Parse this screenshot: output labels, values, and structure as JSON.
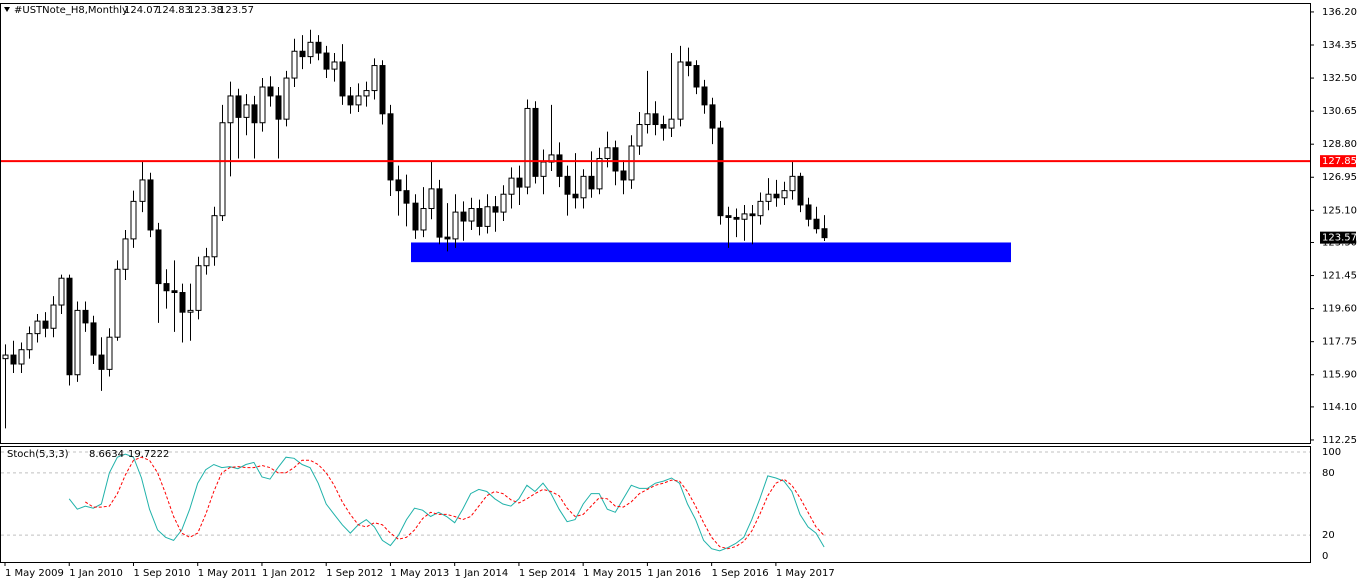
{
  "chart_data": {
    "type": "candlestick",
    "title": "#USTNote_H8,Monthly",
    "categories": [
      "1 May 2009",
      null,
      null,
      null,
      null,
      null,
      null,
      null,
      "1 Jan 2010",
      null,
      null,
      null,
      null,
      null,
      null,
      null,
      "1 Sep 2010",
      null,
      null,
      null,
      null,
      null,
      null,
      null,
      "1 May 2011",
      null,
      null,
      null,
      null,
      null,
      null,
      null,
      "1 Jan 2012",
      null,
      null,
      null,
      null,
      null,
      null,
      null,
      "1 Sep 2012",
      null,
      null,
      null,
      null,
      null,
      null,
      null,
      "1 May 2013",
      null,
      null,
      null,
      null,
      null,
      null,
      null,
      "1 Jan 2014",
      null,
      null,
      null,
      null,
      null,
      null,
      null,
      "1 Sep 2014",
      null,
      null,
      null,
      null,
      null,
      null,
      null,
      "1 May 2015",
      null,
      null,
      null,
      null,
      null,
      null,
      null,
      "1 Jan 2016",
      null,
      null,
      null,
      null,
      null,
      null,
      null,
      "1 Sep 2016",
      null,
      null,
      null,
      null,
      null,
      null,
      null,
      "1 May 2017",
      null,
      null,
      null,
      null,
      null,
      null
    ],
    "candles": [
      [
        116.8,
        117.6,
        112.9,
        117.0
      ],
      [
        117.0,
        117.8,
        116.0,
        116.5
      ],
      [
        116.5,
        117.7,
        116.0,
        117.3
      ],
      [
        117.3,
        118.6,
        116.8,
        118.2
      ],
      [
        118.2,
        119.3,
        117.7,
        118.9
      ],
      [
        118.9,
        119.4,
        118.0,
        118.5
      ],
      [
        118.5,
        120.3,
        118.0,
        119.8
      ],
      [
        119.8,
        121.5,
        119.3,
        121.3
      ],
      [
        121.3,
        121.5,
        115.3,
        115.9
      ],
      [
        115.9,
        120.0,
        115.5,
        119.5
      ],
      [
        119.5,
        120.0,
        118.3,
        118.8
      ],
      [
        118.8,
        119.2,
        116.5,
        117.0
      ],
      [
        117.0,
        118.0,
        115.0,
        116.2
      ],
      [
        116.2,
        118.5,
        115.8,
        118.0
      ],
      [
        118.0,
        122.3,
        117.8,
        121.8
      ],
      [
        121.8,
        124.0,
        121.2,
        123.5
      ],
      [
        123.5,
        126.2,
        123.0,
        125.6
      ],
      [
        125.6,
        127.8,
        125.0,
        126.8
      ],
      [
        126.8,
        127.2,
        123.6,
        124.0
      ],
      [
        124.0,
        124.4,
        118.8,
        121.0
      ],
      [
        121.0,
        121.8,
        119.6,
        120.6
      ],
      [
        120.6,
        122.3,
        118.3,
        120.5
      ],
      [
        120.5,
        121.0,
        117.7,
        119.4
      ],
      [
        119.4,
        121.0,
        117.8,
        119.5
      ],
      [
        119.5,
        122.5,
        119.0,
        122.0
      ],
      [
        122.0,
        123.0,
        121.5,
        122.5
      ],
      [
        122.5,
        125.3,
        122.0,
        124.8
      ],
      [
        124.8,
        131.0,
        124.5,
        130.0
      ],
      [
        130.0,
        132.3,
        127.0,
        131.5
      ],
      [
        131.5,
        131.9,
        128.0,
        130.3
      ],
      [
        130.3,
        131.6,
        129.3,
        131.0
      ],
      [
        131.0,
        131.5,
        128.0,
        130.0
      ],
      [
        130.0,
        132.5,
        129.5,
        132.0
      ],
      [
        132.0,
        132.6,
        130.9,
        131.5
      ],
      [
        131.5,
        132.0,
        128.0,
        130.2
      ],
      [
        130.2,
        132.9,
        129.8,
        132.5
      ],
      [
        132.5,
        134.7,
        132.0,
        134.0
      ],
      [
        134.0,
        134.9,
        133.0,
        133.7
      ],
      [
        133.7,
        135.2,
        133.3,
        134.5
      ],
      [
        134.5,
        134.9,
        133.5,
        133.9
      ],
      [
        133.9,
        134.3,
        132.5,
        133.0
      ],
      [
        133.0,
        133.9,
        132.3,
        133.4
      ],
      [
        133.4,
        134.4,
        131.0,
        131.5
      ],
      [
        131.5,
        132.0,
        130.5,
        131.0
      ],
      [
        131.0,
        132.2,
        130.6,
        131.5
      ],
      [
        131.5,
        132.3,
        130.9,
        131.8
      ],
      [
        131.8,
        133.6,
        131.3,
        133.2
      ],
      [
        133.2,
        133.5,
        129.9,
        130.5
      ],
      [
        130.5,
        131.0,
        125.9,
        126.8
      ],
      [
        126.8,
        127.6,
        124.8,
        126.2
      ],
      [
        126.2,
        127.1,
        124.2,
        125.5
      ],
      [
        125.5,
        126.0,
        123.5,
        124.0
      ],
      [
        124.0,
        126.4,
        123.6,
        125.2
      ],
      [
        125.2,
        127.8,
        124.6,
        126.3
      ],
      [
        126.3,
        126.8,
        123.2,
        123.6
      ],
      [
        123.6,
        125.5,
        122.8,
        123.5
      ],
      [
        123.5,
        126.0,
        123.0,
        125.0
      ],
      [
        125.0,
        125.6,
        123.4,
        124.5
      ],
      [
        124.5,
        125.8,
        124.0,
        125.2
      ],
      [
        125.2,
        125.7,
        123.7,
        124.2
      ],
      [
        124.2,
        126.0,
        123.8,
        125.3
      ],
      [
        125.3,
        125.9,
        123.9,
        125.0
      ],
      [
        125.0,
        126.5,
        124.5,
        126.0
      ],
      [
        126.0,
        127.5,
        125.2,
        126.9
      ],
      [
        126.9,
        127.6,
        125.4,
        126.4
      ],
      [
        126.4,
        131.3,
        126.0,
        130.8
      ],
      [
        130.8,
        131.2,
        126.6,
        127.0
      ],
      [
        127.0,
        128.5,
        126.0,
        127.8
      ],
      [
        127.8,
        131.0,
        127.3,
        128.2
      ],
      [
        128.2,
        128.9,
        126.4,
        127.0
      ],
      [
        127.0,
        127.6,
        124.8,
        126.0
      ],
      [
        126.0,
        128.3,
        125.2,
        125.8
      ],
      [
        125.8,
        127.4,
        125.2,
        127.0
      ],
      [
        127.0,
        128.4,
        125.8,
        126.3
      ],
      [
        126.3,
        128.6,
        126.0,
        128.0
      ],
      [
        128.0,
        129.5,
        127.5,
        128.6
      ],
      [
        128.6,
        129.0,
        126.5,
        127.3
      ],
      [
        127.3,
        127.9,
        126.0,
        126.8
      ],
      [
        126.8,
        129.3,
        126.3,
        128.7
      ],
      [
        128.7,
        130.6,
        128.2,
        129.9
      ],
      [
        129.9,
        132.9,
        129.4,
        130.5
      ],
      [
        130.5,
        131.2,
        129.3,
        129.9
      ],
      [
        129.9,
        130.4,
        129.0,
        129.7
      ],
      [
        129.7,
        133.9,
        129.2,
        130.2
      ],
      [
        130.2,
        134.3,
        129.8,
        133.4
      ],
      [
        133.4,
        134.2,
        132.6,
        133.2
      ],
      [
        133.2,
        133.5,
        131.6,
        132.0
      ],
      [
        132.0,
        132.4,
        130.5,
        131.0
      ],
      [
        131.0,
        131.4,
        128.8,
        129.7
      ],
      [
        129.7,
        130.1,
        124.3,
        124.8
      ],
      [
        124.8,
        125.3,
        123.0,
        124.7
      ],
      [
        124.7,
        125.2,
        123.6,
        124.6
      ],
      [
        124.6,
        125.4,
        123.4,
        124.9
      ],
      [
        124.9,
        125.4,
        123.2,
        124.8
      ],
      [
        124.8,
        126.1,
        124.3,
        125.6
      ],
      [
        125.6,
        126.9,
        125.1,
        126.0
      ],
      [
        126.0,
        126.8,
        125.3,
        125.8
      ],
      [
        125.8,
        126.7,
        125.4,
        126.2
      ],
      [
        126.2,
        127.8,
        125.7,
        127.0
      ],
      [
        127.0,
        127.2,
        125.0,
        125.4
      ],
      [
        125.4,
        125.8,
        124.2,
        124.6
      ],
      [
        124.6,
        125.3,
        123.8,
        124.07
      ],
      [
        124.07,
        124.83,
        123.38,
        123.57
      ]
    ],
    "ylim": [
      112.08,
      136.7
    ],
    "yticks": [
      {
        "value": 136.2,
        "label": "136.20"
      },
      {
        "value": 134.35,
        "label": "134.35"
      },
      {
        "value": 132.5,
        "label": "132.50"
      },
      {
        "value": 130.65,
        "label": "130.65"
      },
      {
        "value": 128.8,
        "label": "128.80"
      },
      {
        "value": 126.95,
        "label": "126.95"
      },
      {
        "value": 125.1,
        "label": "125.10"
      },
      {
        "value": 123.3,
        "label": "123.30"
      },
      {
        "value": 121.45,
        "label": "121.45"
      },
      {
        "value": 119.6,
        "label": "119.60"
      },
      {
        "value": 117.75,
        "label": "117.75"
      },
      {
        "value": 115.9,
        "label": "115.90"
      },
      {
        "value": 114.1,
        "label": "114.10"
      },
      {
        "value": 112.25,
        "label": "112.25"
      }
    ],
    "hline": {
      "value": 127.85,
      "color": "#ff0000"
    },
    "zone": {
      "ylim": [
        122.2,
        123.3
      ],
      "color": "#0000ff"
    },
    "indicator": {
      "type": "line",
      "title": "Stoch(5,3,3)",
      "ylim": [
        -5.8,
        105.8
      ],
      "yticks": [
        0,
        20,
        80,
        100
      ],
      "series": [
        {
          "color": "#20b2aa",
          "dash": false,
          "values": [
            null,
            null,
            null,
            null,
            null,
            null,
            null,
            null,
            55,
            45,
            48,
            46,
            50,
            80,
            95,
            98,
            95,
            75,
            45,
            25,
            18,
            15,
            25,
            45,
            70,
            83,
            88,
            85,
            86,
            84,
            88,
            90,
            76,
            74,
            85,
            95,
            94,
            88,
            85,
            70,
            50,
            40,
            30,
            22,
            30,
            35,
            28,
            15,
            10,
            20,
            35,
            46,
            44,
            38,
            42,
            38,
            32,
            45,
            60,
            64,
            62,
            55,
            50,
            48,
            55,
            68,
            62,
            70,
            60,
            45,
            33,
            35,
            50,
            60,
            60,
            45,
            42,
            55,
            68,
            65,
            65,
            70,
            72,
            75,
            70,
            50,
            35,
            15,
            7,
            5,
            8,
            12,
            18,
            35,
            55,
            77,
            75,
            72,
            62,
            40,
            28,
            22,
            8.6634
          ]
        },
        {
          "color": "#ff0000",
          "dash": true,
          "values": [
            null,
            null,
            null,
            null,
            null,
            null,
            null,
            null,
            null,
            null,
            52,
            47,
            47,
            48,
            60,
            78,
            92,
            95,
            92,
            80,
            60,
            38,
            22,
            18,
            22,
            40,
            62,
            80,
            85,
            86,
            85,
            85,
            87,
            85,
            80,
            80,
            85,
            92,
            92,
            88,
            80,
            68,
            52,
            40,
            30,
            28,
            32,
            30,
            22,
            16,
            18,
            25,
            36,
            42,
            40,
            40,
            38,
            35,
            38,
            48,
            58,
            62,
            60,
            54,
            51,
            55,
            60,
            64,
            62,
            58,
            46,
            38,
            40,
            48,
            56,
            55,
            48,
            47,
            52,
            60,
            64,
            68,
            70,
            73,
            72,
            62,
            48,
            32,
            18,
            9,
            7,
            9,
            14,
            24,
            40,
            58,
            70,
            74,
            68,
            56,
            42,
            28,
            19.7222
          ]
        }
      ]
    }
  }
}
